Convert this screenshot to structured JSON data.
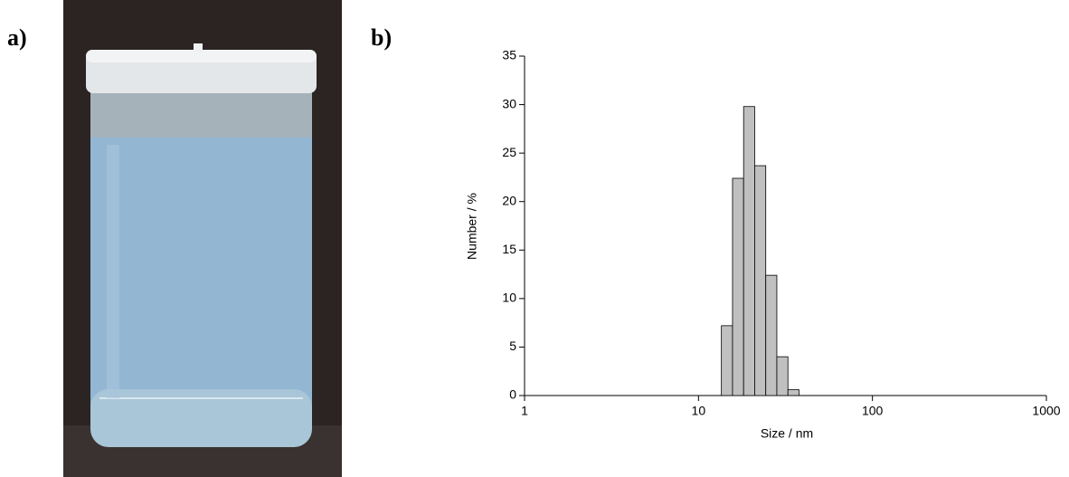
{
  "panel_labels": [
    "a)",
    "b)"
  ],
  "chart_data": {
    "type": "histogram",
    "xlabel": "Size / nm",
    "ylabel": "Number / %",
    "bins": [
      13.54,
      15.69,
      18.17,
      21.04,
      24.36,
      28.21,
      32.67,
      37.84
    ],
    "values": [
      7.2,
      22.4,
      29.8,
      23.7,
      12.4,
      4.0,
      0.6
    ],
    "color": "#c0c0c0",
    "xscale": "log",
    "xlim": [
      1,
      1000
    ],
    "xticks": [
      1,
      10,
      100,
      1000
    ],
    "ylim": [
      0,
      35
    ],
    "yticks": [
      0,
      5,
      10,
      15,
      20,
      25,
      30,
      35
    ]
  }
}
